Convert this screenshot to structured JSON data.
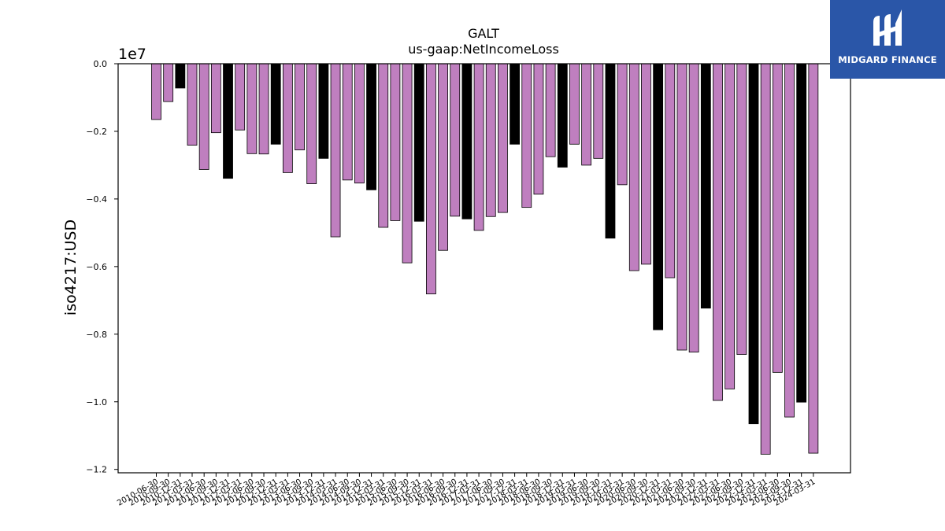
{
  "brand": {
    "name": "MIDGARD FINANCE",
    "icon": "midgard-logo-icon",
    "background_color": "#2a56a8"
  },
  "chart_data": {
    "type": "bar",
    "title": "GALT",
    "subtitle": "us-gaap:NetIncomeLoss",
    "xlabel": "",
    "ylabel": "iso4217:USD",
    "y_scale_label": "1e7",
    "y_multiplier": 10000000,
    "ylim": [
      -1.21,
      0.0
    ],
    "yticks": [
      0.0,
      -0.2,
      -0.4,
      -0.6,
      -0.8,
      -1.0,
      -1.2
    ],
    "ytick_labels": [
      "0.0",
      "−0.2",
      "−0.4",
      "−0.6",
      "−0.8",
      "−1.0",
      "−1.2"
    ],
    "grid": false,
    "legend": "none",
    "colors": {
      "quarter": "#bf7fbf",
      "annual": "#000000",
      "edge": "#000000"
    },
    "categories": [
      "2010-06-30",
      "2010-09-30",
      "2010-12-31",
      "2011-03-31",
      "2011-06-30",
      "2011-09-30",
      "2011-12-31",
      "2012-03-31",
      "2012-06-30",
      "2012-09-30",
      "2012-12-31",
      "2013-03-31",
      "2013-06-30",
      "2013-09-30",
      "2013-12-31",
      "2014-03-31",
      "2014-06-30",
      "2014-09-30",
      "2014-12-31",
      "2015-03-31",
      "2015-06-30",
      "2015-09-30",
      "2015-12-31",
      "2016-03-31",
      "2016-06-30",
      "2016-09-30",
      "2016-12-31",
      "2017-03-31",
      "2017-06-30",
      "2017-09-30",
      "2017-12-31",
      "2018-03-31",
      "2018-06-30",
      "2018-09-30",
      "2018-12-31",
      "2019-03-31",
      "2019-06-30",
      "2019-09-30",
      "2019-12-31",
      "2020-03-31",
      "2020-06-30",
      "2020-09-30",
      "2020-12-31",
      "2021-03-31",
      "2021-06-30",
      "2021-09-30",
      "2021-12-31",
      "2022-03-31",
      "2022-06-30",
      "2022-09-30",
      "2022-12-31",
      "2023-03-31",
      "2023-06-30",
      "2023-09-30",
      "2023-12-31",
      "2024-03-31"
    ],
    "values": [
      -0.165,
      -0.112,
      -0.072,
      -0.241,
      -0.313,
      -0.204,
      -0.339,
      -0.196,
      -0.266,
      -0.267,
      -0.238,
      -0.322,
      -0.255,
      -0.355,
      -0.28,
      -0.512,
      -0.344,
      -0.353,
      -0.373,
      -0.484,
      -0.464,
      -0.589,
      -0.466,
      -0.681,
      -0.552,
      -0.451,
      -0.459,
      -0.493,
      -0.452,
      -0.44,
      -0.238,
      -0.425,
      -0.386,
      -0.275,
      -0.306,
      -0.238,
      -0.3,
      -0.28,
      -0.516,
      -0.358,
      -0.612,
      -0.593,
      -0.787,
      -0.633,
      -0.847,
      -0.853,
      -0.723,
      -0.996,
      -0.962,
      -0.86,
      -1.065,
      -1.155,
      -0.913,
      -1.045,
      -1.001,
      -1.152
    ],
    "annual": [
      false,
      false,
      true,
      false,
      false,
      false,
      true,
      false,
      false,
      false,
      true,
      false,
      false,
      false,
      true,
      false,
      false,
      false,
      true,
      false,
      false,
      false,
      true,
      false,
      false,
      false,
      true,
      false,
      false,
      false,
      true,
      false,
      false,
      false,
      true,
      false,
      false,
      false,
      true,
      false,
      false,
      false,
      true,
      false,
      false,
      false,
      true,
      false,
      false,
      false,
      true,
      false,
      false,
      false,
      true,
      false
    ]
  }
}
